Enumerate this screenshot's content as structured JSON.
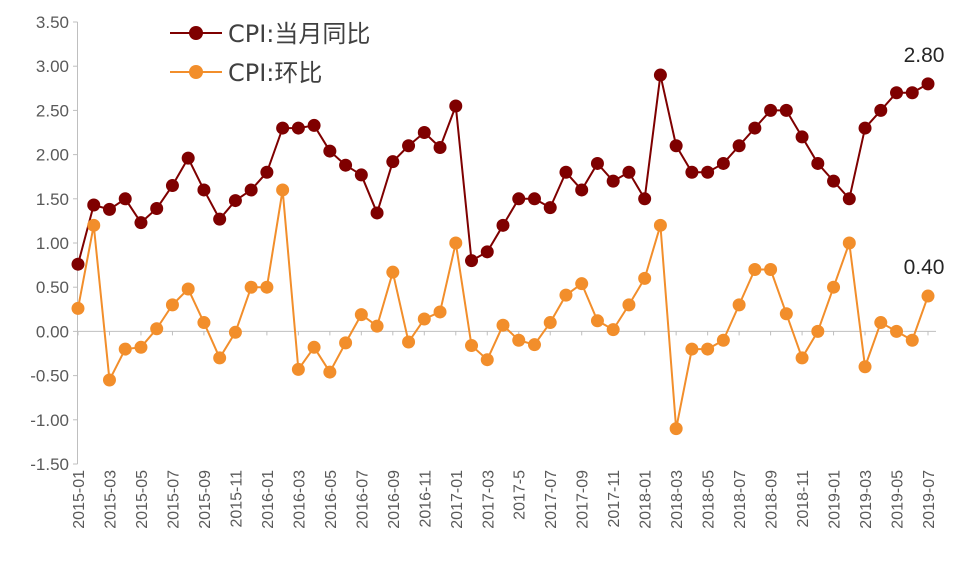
{
  "chart_data": {
    "type": "line",
    "x": [
      "2015-01",
      "2015-02",
      "2015-03",
      "2015-04",
      "2015-05",
      "2015-06",
      "2015-07",
      "2015-08",
      "2015-09",
      "2015-10",
      "2015-11",
      "2015-12",
      "2016-01",
      "2016-02",
      "2016-03",
      "2016-04",
      "2016-05",
      "2016-06",
      "2016-07",
      "2016-08",
      "2016-09",
      "2016-10",
      "2016-11",
      "2016-12",
      "2017-01",
      "2017-02",
      "2017-03",
      "2017-04",
      "2017-05",
      "2017-06",
      "2017-07",
      "2017-08",
      "2017-09",
      "2017-10",
      "2017-11",
      "2017-12",
      "2018-01",
      "2018-02",
      "2018-03",
      "2018-04",
      "2018-05",
      "2018-06",
      "2018-07",
      "2018-08",
      "2018-09",
      "2018-10",
      "2018-11",
      "2018-12",
      "2019-01",
      "2019-02",
      "2019-03",
      "2019-04",
      "2019-05",
      "2019-06",
      "2019-07"
    ],
    "x_tick_labels": [
      "2015-01",
      "2015-03",
      "2015-05",
      "2015-07",
      "2015-09",
      "2015-11",
      "2016-01",
      "2016-03",
      "2016-05",
      "2016-07",
      "2016-09",
      "2016-11",
      "2017-01",
      "2017-03",
      "2017-5",
      "2017-07",
      "2017-09",
      "2017-11",
      "2018-01",
      "2018-03",
      "2018-05",
      "2018-07",
      "2018-09",
      "2018-11",
      "2019-01",
      "2019-03",
      "2019-05",
      "2019-07"
    ],
    "y_tick_labels": [
      "3.50",
      "3.00",
      "2.50",
      "2.00",
      "1.50",
      "1.00",
      "0.50",
      "0.00",
      "-0.50",
      "-1.00",
      "-1.50"
    ],
    "ylim": [
      -1.5,
      3.5
    ],
    "y_step": 0.5,
    "grid": false,
    "legend_position": "top-left",
    "series": [
      {
        "name": "CPI:当月同比",
        "color": "#7f0000",
        "values": [
          0.76,
          1.43,
          1.38,
          1.5,
          1.23,
          1.39,
          1.65,
          1.96,
          1.6,
          1.27,
          1.48,
          1.6,
          1.8,
          2.3,
          2.3,
          2.33,
          2.04,
          1.88,
          1.77,
          1.34,
          1.92,
          2.1,
          2.25,
          2.08,
          2.55,
          0.8,
          0.9,
          1.2,
          1.5,
          1.5,
          1.4,
          1.8,
          1.6,
          1.9,
          1.7,
          1.8,
          1.5,
          2.9,
          2.1,
          1.8,
          1.8,
          1.9,
          2.1,
          2.3,
          2.5,
          2.5,
          2.2,
          1.9,
          1.7,
          1.5,
          2.3,
          2.5,
          2.7,
          2.7,
          2.8
        ],
        "end_label": "2.80"
      },
      {
        "name": "CPI:环比",
        "color": "#f28e2b",
        "values": [
          0.26,
          1.2,
          -0.55,
          -0.2,
          -0.18,
          0.03,
          0.3,
          0.48,
          0.1,
          -0.3,
          -0.01,
          0.5,
          0.5,
          1.6,
          -0.43,
          -0.18,
          -0.46,
          -0.13,
          0.19,
          0.06,
          0.67,
          -0.12,
          0.14,
          0.22,
          1.0,
          -0.16,
          -0.32,
          0.07,
          -0.1,
          -0.15,
          0.1,
          0.41,
          0.54,
          0.12,
          0.02,
          0.3,
          0.6,
          1.2,
          -1.1,
          -0.2,
          -0.2,
          -0.1,
          0.3,
          0.7,
          0.7,
          0.2,
          -0.3,
          0.0,
          0.5,
          1.0,
          -0.4,
          0.1,
          0.0,
          -0.1,
          0.4
        ],
        "end_label": "0.40"
      }
    ]
  }
}
